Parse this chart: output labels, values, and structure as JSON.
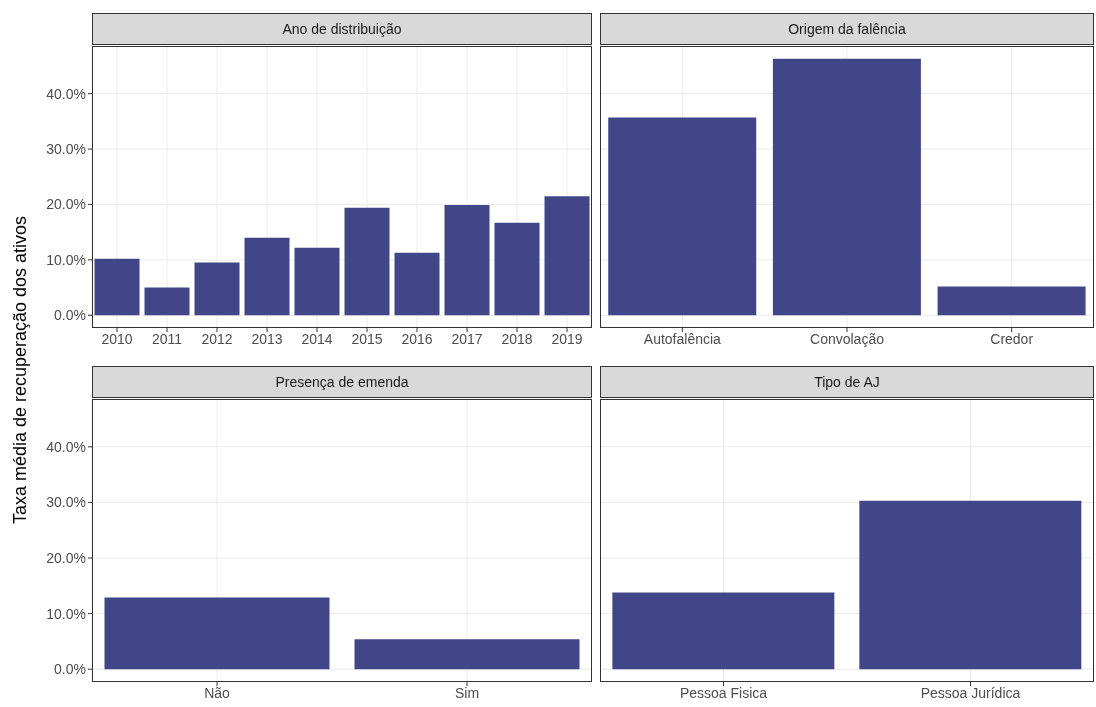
{
  "chart_data": [
    {
      "type": "bar",
      "title": "Ano de distribuição",
      "ylabel": "Taxa média de recuperação dos ativos",
      "categories": [
        "2010",
        "2011",
        "2012",
        "2013",
        "2014",
        "2015",
        "2016",
        "2017",
        "2018",
        "2019"
      ],
      "values": [
        10.2,
        5.0,
        9.5,
        14.0,
        12.2,
        19.4,
        11.3,
        19.9,
        16.7,
        21.5
      ],
      "color": "#404688",
      "ylim": [
        -2.3,
        48.6
      ],
      "yticks": [
        {
          "value": 0,
          "label": "0.0%"
        },
        {
          "value": 10,
          "label": "10.0%"
        },
        {
          "value": 20,
          "label": "20.0%"
        },
        {
          "value": 30,
          "label": "30.0%"
        },
        {
          "value": 40,
          "label": "40.0%"
        }
      ],
      "grid": true
    },
    {
      "type": "bar",
      "title": "Origem da falência",
      "categories": [
        "Autofalência",
        "Convolação",
        "Credor"
      ],
      "values": [
        35.7,
        46.3,
        5.2
      ],
      "color": "#404688",
      "ylim": [
        -2.3,
        48.6
      ],
      "yticks": [
        0,
        10,
        20,
        30,
        40
      ],
      "grid": true,
      "tick_labels": "x"
    },
    {
      "type": "bar",
      "title": "Presença de emenda",
      "categories": [
        "Não",
        "Sim"
      ],
      "values": [
        12.9,
        5.4
      ],
      "color": "#404688",
      "ylim": [
        -2.3,
        48.6
      ],
      "yticks": [
        {
          "value": 0,
          "label": "0.0%"
        },
        {
          "value": 10,
          "label": "10.0%"
        },
        {
          "value": 20,
          "label": "20.0%"
        },
        {
          "value": 30,
          "label": "30.0%"
        },
        {
          "value": 40,
          "label": "40.0%"
        }
      ],
      "grid": true
    },
    {
      "type": "bar",
      "title": "Tipo de AJ",
      "categories": [
        "Pessoa Fisica",
        "Pessoa Jurídica"
      ],
      "values": [
        13.8,
        30.3
      ],
      "color": "#404688",
      "ylim": [
        -2.3,
        48.6
      ],
      "yticks": [
        0,
        10,
        20,
        30,
        40
      ],
      "grid": true,
      "tick_labels": "x"
    }
  ]
}
